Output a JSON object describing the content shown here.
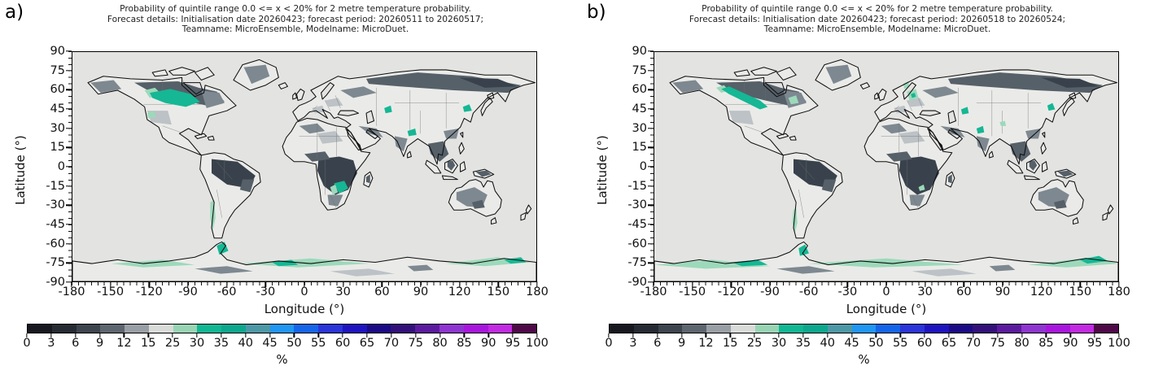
{
  "panels": [
    {
      "label": "a)",
      "title_lines": [
        "Probability of quintile range 0.0 <= x < 20% for 2 metre temperature probability.",
        "Forecast details: Initialisation date 20260423; forecast period: 20260511 to 20260517;",
        "Teamname: MicroEnsemble, Modelname: MicroDuet."
      ]
    },
    {
      "label": "b)",
      "title_lines": [
        "Probability of quintile range 0.0 <= x < 20% for 2 metre temperature probability.",
        "Forecast details: Initialisation date 20260423; forecast period: 20260518 to 20260524;",
        "Teamname: MicroEnsemble, Modelname: MicroDuet."
      ]
    }
  ],
  "axes": {
    "ylabel": "Latitude (°)",
    "xlabel": "Longitude (°)",
    "yticks": [
      "90",
      "75",
      "60",
      "45",
      "30",
      "15",
      "0",
      "-15",
      "-30",
      "-45",
      "-60",
      "-75",
      "-90"
    ],
    "xticks": [
      "-180",
      "-150",
      "-120",
      "-90",
      "-60",
      "-30",
      "0",
      "30",
      "60",
      "90",
      "120",
      "150",
      "180"
    ]
  },
  "colorbar": {
    "unit": "%",
    "tick_labels": [
      "0",
      "3",
      "6",
      "9",
      "12",
      "15",
      "25",
      "30",
      "35",
      "40",
      "45",
      "50",
      "55",
      "60",
      "65",
      "70",
      "75",
      "80",
      "85",
      "90",
      "95",
      "100"
    ],
    "segment_colors": [
      "#17171f",
      "#262b33",
      "#3d444e",
      "#5d656f",
      "#999fa4",
      "#d9dbd9",
      "#98d4b3",
      "#11b793",
      "#0da78e",
      "#4e98a6",
      "#2196f3",
      "#1565e8",
      "#2b35d8",
      "#1f14c0",
      "#1c0a86",
      "#33107a",
      "#5c1b9e",
      "#8f35cf",
      "#a816dd",
      "#c22ae2",
      "#4f0848"
    ]
  },
  "map_colors": {
    "ocean": "#e3e3e2",
    "land": "#eaebe8",
    "coast": "#0d0d0d",
    "border": "#6f6f6f",
    "dark": "#39424c",
    "slate": "#566069",
    "med": "#7e8890",
    "light": "#bcc2c6",
    "teal": "#15b794",
    "pale": "#9cd9ba"
  },
  "chart_data": [
    {
      "type": "heatmap",
      "projection": "equirectangular world map",
      "title": "Probability of quintile range 0.0 <= x < 20% for 2 metre temperature probability. Forecast details: Initialisation date 20260423; forecast period: 20260511 to 20260517; Teamname: MicroEnsemble, Modelname: MicroDuet.",
      "xlabel": "Longitude (°)",
      "ylabel": "Latitude (°)",
      "xlim": [
        -180,
        180
      ],
      "ylim": [
        -90,
        90
      ],
      "xticks": [
        -180,
        -150,
        -120,
        -90,
        -60,
        -30,
        0,
        30,
        60,
        90,
        120,
        150,
        180
      ],
      "yticks": [
        90,
        75,
        60,
        45,
        30,
        15,
        0,
        -15,
        -30,
        -45,
        -60,
        -75,
        -90
      ],
      "colorbar": {
        "label": "%",
        "tick_values": [
          0,
          3,
          6,
          9,
          12,
          15,
          25,
          30,
          35,
          40,
          45,
          50,
          55,
          60,
          65,
          70,
          75,
          80,
          85,
          90,
          95,
          100
        ]
      },
      "notable_regions": [
        "25-40% teal patch over central Canada (Manitoba/Ontario/Quebec)",
        "dark 0-9% over Amazon basin, central/southern Africa, Siberia, Southeast Asia",
        "25-35% teal spots in southern Africa, central Asia, Nepal, northeast China",
        "pale green 25-30% bands along Antarctic coast and Antarctic Peninsula",
        "ocean masked light gray"
      ]
    },
    {
      "type": "heatmap",
      "projection": "equirectangular world map",
      "title": "Probability of quintile range 0.0 <= x < 20% for 2 metre temperature probability. Forecast details: Initialisation date 20260423; forecast period: 20260518 to 20260524; Teamname: MicroEnsemble, Modelname: MicroDuet.",
      "xlabel": "Longitude (°)",
      "ylabel": "Latitude (°)",
      "xlim": [
        -180,
        180
      ],
      "ylim": [
        -90,
        90
      ],
      "xticks": [
        -180,
        -150,
        -120,
        -90,
        -60,
        -30,
        0,
        30,
        60,
        90,
        120,
        150,
        180
      ],
      "yticks": [
        90,
        75,
        60,
        45,
        30,
        15,
        0,
        -15,
        -30,
        -45,
        -60,
        -75,
        -90
      ],
      "colorbar": {
        "label": "%",
        "tick_values": [
          0,
          3,
          6,
          9,
          12,
          15,
          25,
          30,
          35,
          40,
          45,
          50,
          55,
          60,
          65,
          70,
          75,
          80,
          85,
          90,
          95,
          100
        ]
      },
      "notable_regions": [
        "thin diagonal 25-35% teal streak across northwest-central Canada",
        "pale green 25-30% patches over Baltics/Poland/Sweden",
        "teal spots in central Asia, northwest India, northeast China",
        "dark 0-9% over Amazon basin, central/southern Africa, Siberia",
        "extensive pale green 25-30% along Antarctic coastline",
        "ocean masked light gray"
      ]
    }
  ]
}
